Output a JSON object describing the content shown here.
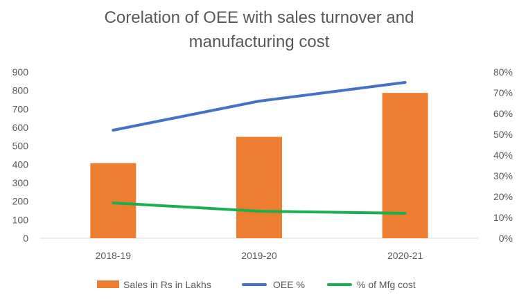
{
  "chart_data": {
    "type": "bar",
    "title_line1": "Corelation of OEE with sales turnover and",
    "title_line2": "manufacturing cost",
    "categories": [
      "2018-19",
      "2019-20",
      "2020-21"
    ],
    "series": [
      {
        "name": "Sales in Rs in Lakhs",
        "type": "bar",
        "axis": "left",
        "values": [
          407,
          549,
          787
        ],
        "color": "#ED7D31"
      },
      {
        "name": "OEE %",
        "type": "line",
        "axis": "right",
        "values": [
          52,
          66,
          75
        ],
        "color": "#4472C4"
      },
      {
        "name": "% of Mfg cost",
        "type": "line",
        "axis": "right",
        "values": [
          17,
          13,
          12
        ],
        "color": "#18B050"
      }
    ],
    "y_left": {
      "ylim": [
        0,
        900
      ],
      "ticks": [
        "0",
        "100",
        "200",
        "300",
        "400",
        "500",
        "600",
        "700",
        "800",
        "900"
      ]
    },
    "y_right": {
      "ylim": [
        0,
        80
      ],
      "ticks": [
        "0%",
        "10%",
        "20%",
        "30%",
        "40%",
        "50%",
        "60%",
        "70%",
        "80%"
      ]
    },
    "grid": false,
    "legend_position": "bottom"
  }
}
